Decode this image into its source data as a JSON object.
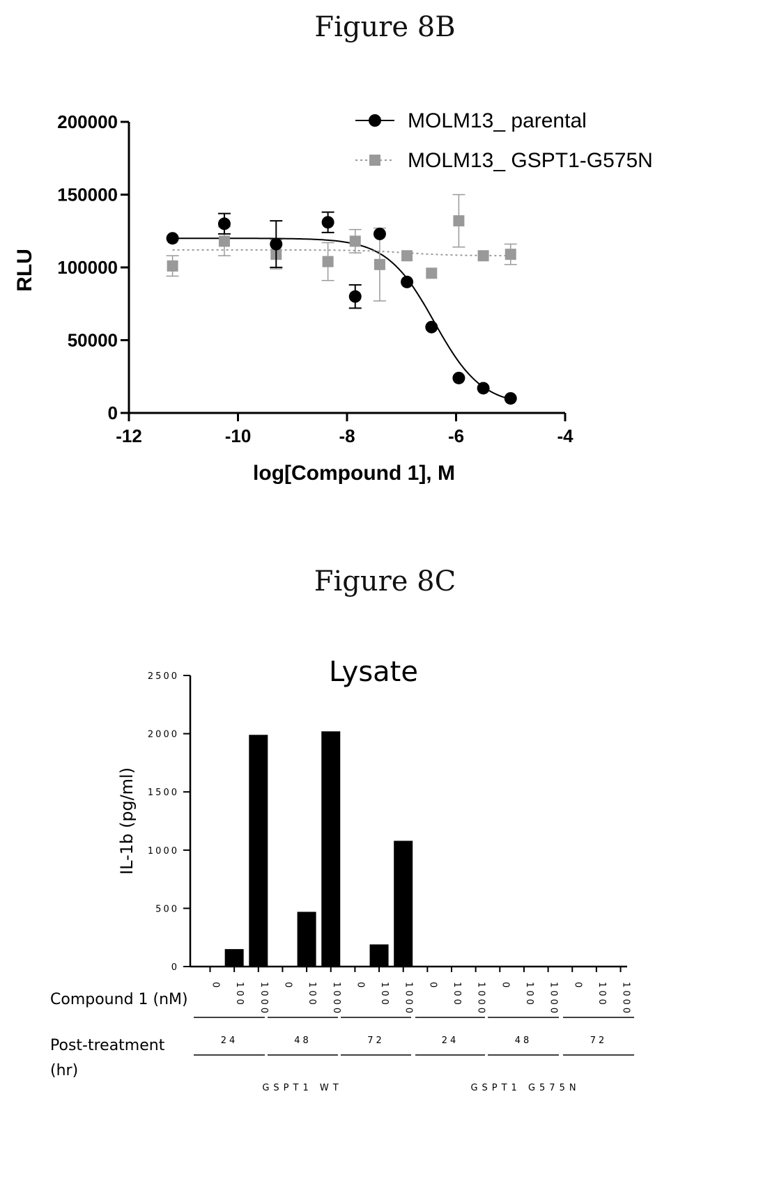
{
  "figure_8b": {
    "label": "Figure 8B"
  },
  "figure_8c": {
    "label": "Figure 8C"
  },
  "chart_data": [
    {
      "type": "scatter",
      "title": "",
      "xlabel": "log[Compound 1], M",
      "ylabel": "RLU",
      "xlim": [
        -12,
        -4
      ],
      "ylim": [
        0,
        200000
      ],
      "x_ticks": [
        -12,
        -10,
        -8,
        -6,
        -4
      ],
      "y_ticks": [
        0,
        50000,
        100000,
        150000,
        200000
      ],
      "legend_position": "top-right",
      "series": [
        {
          "name": "MOLM13_ parental",
          "marker": "circle",
          "color": "#000000",
          "x": [
            -11.2,
            -10.25,
            -9.3,
            -8.35,
            -7.85,
            -7.4,
            -6.9,
            -6.45,
            -5.95,
            -5.5,
            -5.0
          ],
          "y": [
            120000,
            130000,
            116000,
            131000,
            80000,
            123000,
            90000,
            59000,
            24000,
            17000,
            10000
          ],
          "error": [
            0,
            7000,
            16000,
            7000,
            8000,
            0,
            0,
            0,
            0,
            0,
            0
          ],
          "fit": {
            "top": 120000,
            "bottom": 5000,
            "logIC50": -6.4,
            "hill": 1.0
          }
        },
        {
          "name": "MOLM13_  GSPT1-G575N",
          "marker": "square",
          "color": "#999999",
          "x": [
            -11.2,
            -10.25,
            -9.3,
            -8.35,
            -7.85,
            -7.4,
            -6.9,
            -6.45,
            -5.95,
            -5.5,
            -5.0
          ],
          "y": [
            101000,
            118000,
            109000,
            104000,
            118000,
            102000,
            108000,
            96000,
            132000,
            108000,
            109000
          ],
          "error": [
            7000,
            10000,
            10000,
            13000,
            8000,
            25000,
            0,
            0,
            18000,
            0,
            7000
          ],
          "fit": {
            "top": 112000,
            "bottom": 108000,
            "logIC50": -6.9,
            "hill": 1.0
          }
        }
      ]
    },
    {
      "type": "bar",
      "title": "Lysate",
      "ylabel": "IL-1b (pg/ml)",
      "ylim": [
        0,
        2500
      ],
      "y_ticks": [
        0,
        500,
        1000,
        1500,
        2000,
        2500
      ],
      "row_labels": {
        "compound": "Compound 1 (nM)",
        "post_treatment_1": "Post-treatment",
        "post_treatment_2": "(hr)"
      },
      "categories": [
        "0",
        "100",
        "1000",
        "0",
        "100",
        "1000",
        "0",
        "100",
        "1000",
        "0",
        "100",
        "1000",
        "0",
        "100",
        "1000",
        "0",
        "100",
        "1000"
      ],
      "values": [
        0,
        150,
        1990,
        0,
        470,
        2020,
        0,
        190,
        1080,
        0,
        0,
        0,
        0,
        0,
        0,
        0,
        0,
        0
      ],
      "color": "#000000",
      "time_groups": [
        "24",
        "48",
        "72",
        "24",
        "48",
        "72"
      ],
      "genotype_groups": [
        "GSPT1 WT",
        "GSPT1 G575N"
      ]
    }
  ]
}
